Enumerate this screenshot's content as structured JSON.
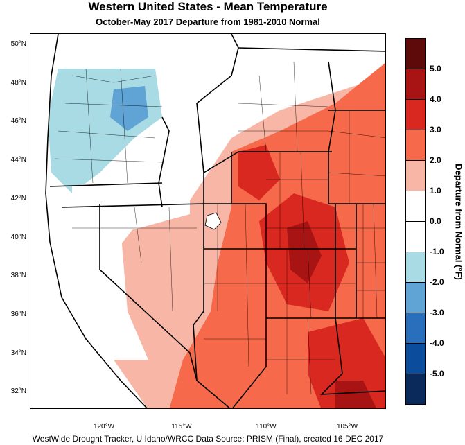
{
  "title": "Western United States - Mean Temperature",
  "subtitle": "October-May 2017  Departure from 1981-2010 Normal",
  "footer": "WestWide Drought Tracker, U Idaho/WRCC Data Source: PRISM (Final), created 16 DEC 2017",
  "colorbar": {
    "title": "Departure from Normal (°F)",
    "labels": [
      "5.0",
      "4.0",
      "3.0",
      "2.0",
      "1.0",
      "0.0",
      "-1.0",
      "-2.0",
      "-3.0",
      "-4.0",
      "-5.0"
    ],
    "colors": [
      "#5e0a0a",
      "#a81414",
      "#d9281f",
      "#f66a4b",
      "#f8b6a7",
      "#ffffff",
      "#ffffff",
      "#a8dbe4",
      "#5fa4d4",
      "#2a6fbb",
      "#0c4c9c",
      "#0a2a5c"
    ]
  },
  "axes": {
    "lat_labels": [
      "50°N",
      "48°N",
      "46°N",
      "44°N",
      "42°N",
      "40°N",
      "38°N",
      "36°N",
      "34°N",
      "32°N"
    ],
    "lon_labels": [
      "120°W",
      "115°W",
      "110°W",
      "105°W"
    ]
  }
}
